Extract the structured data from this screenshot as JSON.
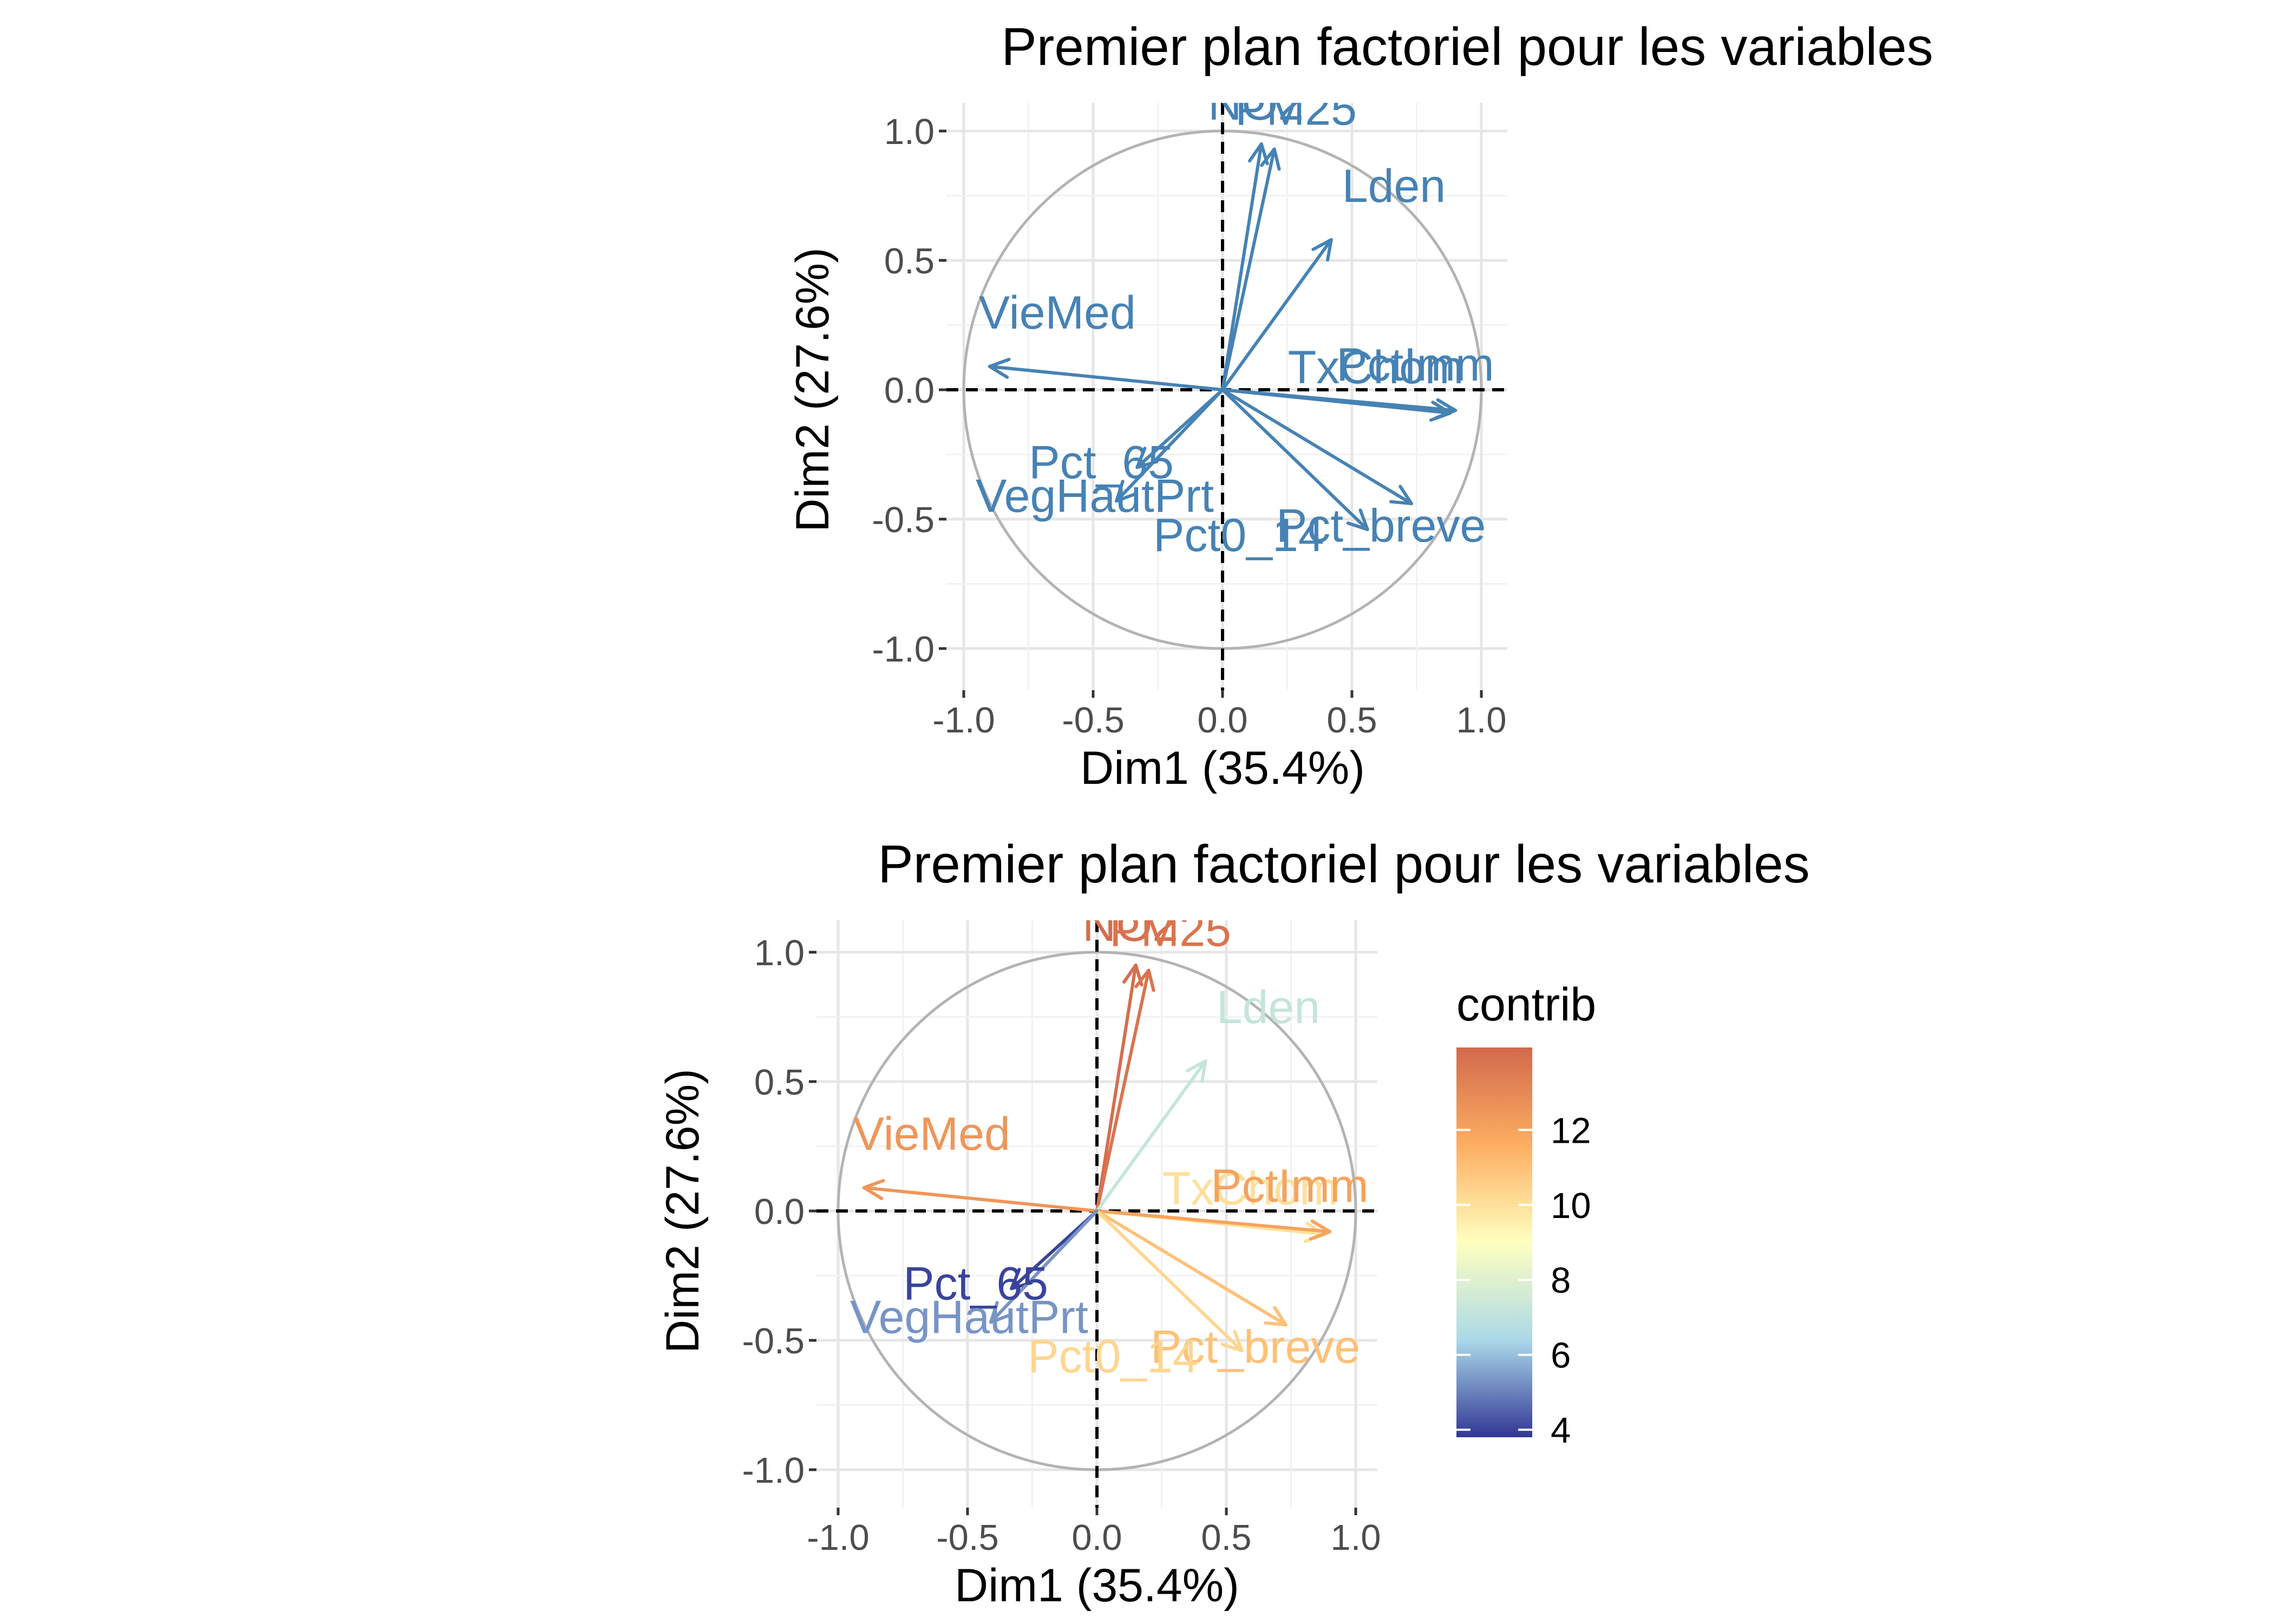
{
  "chart_data": [
    {
      "type": "scatter",
      "subtype": "pca-correlation-circle",
      "title": "Premier plan factoriel pour les variables",
      "xlabel": "Dim1 (35.4%)",
      "ylabel": "Dim2 (27.6%)",
      "xlim": [
        -1.0,
        1.0
      ],
      "ylim": [
        -1.0,
        1.0
      ],
      "x_ticks": [
        "-1.0",
        "-0.5",
        "0.0",
        "0.5",
        "1.0"
      ],
      "y_ticks": [
        "1.0",
        "0.5",
        "0.0",
        "-0.5",
        "-1.0"
      ],
      "grid": true,
      "arrow_color": "#4682B4",
      "variables": [
        {
          "name": "NO2",
          "x": 0.15,
          "y": 0.95
        },
        {
          "name": "PM25",
          "x": 0.2,
          "y": 0.93
        },
        {
          "name": "Lden",
          "x": 0.42,
          "y": 0.58
        },
        {
          "name": "VieMed",
          "x": -0.9,
          "y": 0.09
        },
        {
          "name": "TxChom",
          "x": 0.88,
          "y": -0.09
        },
        {
          "name": "PctImm",
          "x": 0.9,
          "y": -0.08
        },
        {
          "name": "Pct_breve",
          "x": 0.73,
          "y": -0.44
        },
        {
          "name": "Pct0_14",
          "x": 0.56,
          "y": -0.54
        },
        {
          "name": "Pct_65",
          "x": -0.33,
          "y": -0.3
        },
        {
          "name": "VegHautPrt",
          "x": -0.41,
          "y": -0.43
        }
      ],
      "visible_labels": [
        "NO2",
        "PM25",
        "Lden",
        "VieMed",
        "TxChom",
        "PctImm",
        "Pct_breve",
        "Pct0_14",
        "Pct_65",
        "VegHautPrt"
      ]
    },
    {
      "type": "scatter",
      "subtype": "pca-correlation-circle",
      "title": "Premier plan factoriel pour les variables",
      "xlabel": "Dim1 (35.4%)",
      "ylabel": "Dim2 (27.6%)",
      "xlim": [
        -1.0,
        1.0
      ],
      "ylim": [
        -1.0,
        1.0
      ],
      "x_ticks": [
        "-1.0",
        "-0.5",
        "0.0",
        "0.5",
        "1.0"
      ],
      "y_ticks": [
        "1.0",
        "0.5",
        "0.0",
        "-0.5",
        "-1.0"
      ],
      "grid": true,
      "legend": {
        "title": "contrib",
        "placement": "right",
        "ticks": [
          "12",
          "10",
          "8",
          "6",
          "4"
        ],
        "range": [
          3.8,
          14.2
        ],
        "colors": [
          "#313695",
          "#ABD9E9",
          "#FFFFBF",
          "#FDAE61",
          "#D2694C"
        ]
      },
      "variables": [
        {
          "name": "NO2",
          "x": 0.15,
          "y": 0.95,
          "contrib": 14.0
        },
        {
          "name": "PM25",
          "x": 0.2,
          "y": 0.93,
          "contrib": 13.8
        },
        {
          "name": "Lden",
          "x": 0.42,
          "y": 0.58,
          "contrib": 7.2
        },
        {
          "name": "VieMed",
          "x": -0.9,
          "y": 0.09,
          "contrib": 12.5
        },
        {
          "name": "TxChom",
          "x": 0.88,
          "y": -0.09,
          "contrib": 10.0
        },
        {
          "name": "PctImm",
          "x": 0.9,
          "y": -0.08,
          "contrib": 12.0
        },
        {
          "name": "Pct_breve",
          "x": 0.73,
          "y": -0.44,
          "contrib": 11.0
        },
        {
          "name": "Pct0_14",
          "x": 0.56,
          "y": -0.54,
          "contrib": 10.3
        },
        {
          "name": "Pct_65",
          "x": -0.33,
          "y": -0.3,
          "contrib": 4.0
        },
        {
          "name": "VegHautPrt",
          "x": -0.41,
          "y": -0.43,
          "contrib": 5.3
        }
      ],
      "visible_labels": [
        "NO2",
        "PM25",
        "Lden",
        "VieMed",
        "TxChom",
        "PctImm",
        "Pct_breve",
        "Pct0_14",
        "Pct_65",
        "VegHautPrt"
      ]
    }
  ]
}
